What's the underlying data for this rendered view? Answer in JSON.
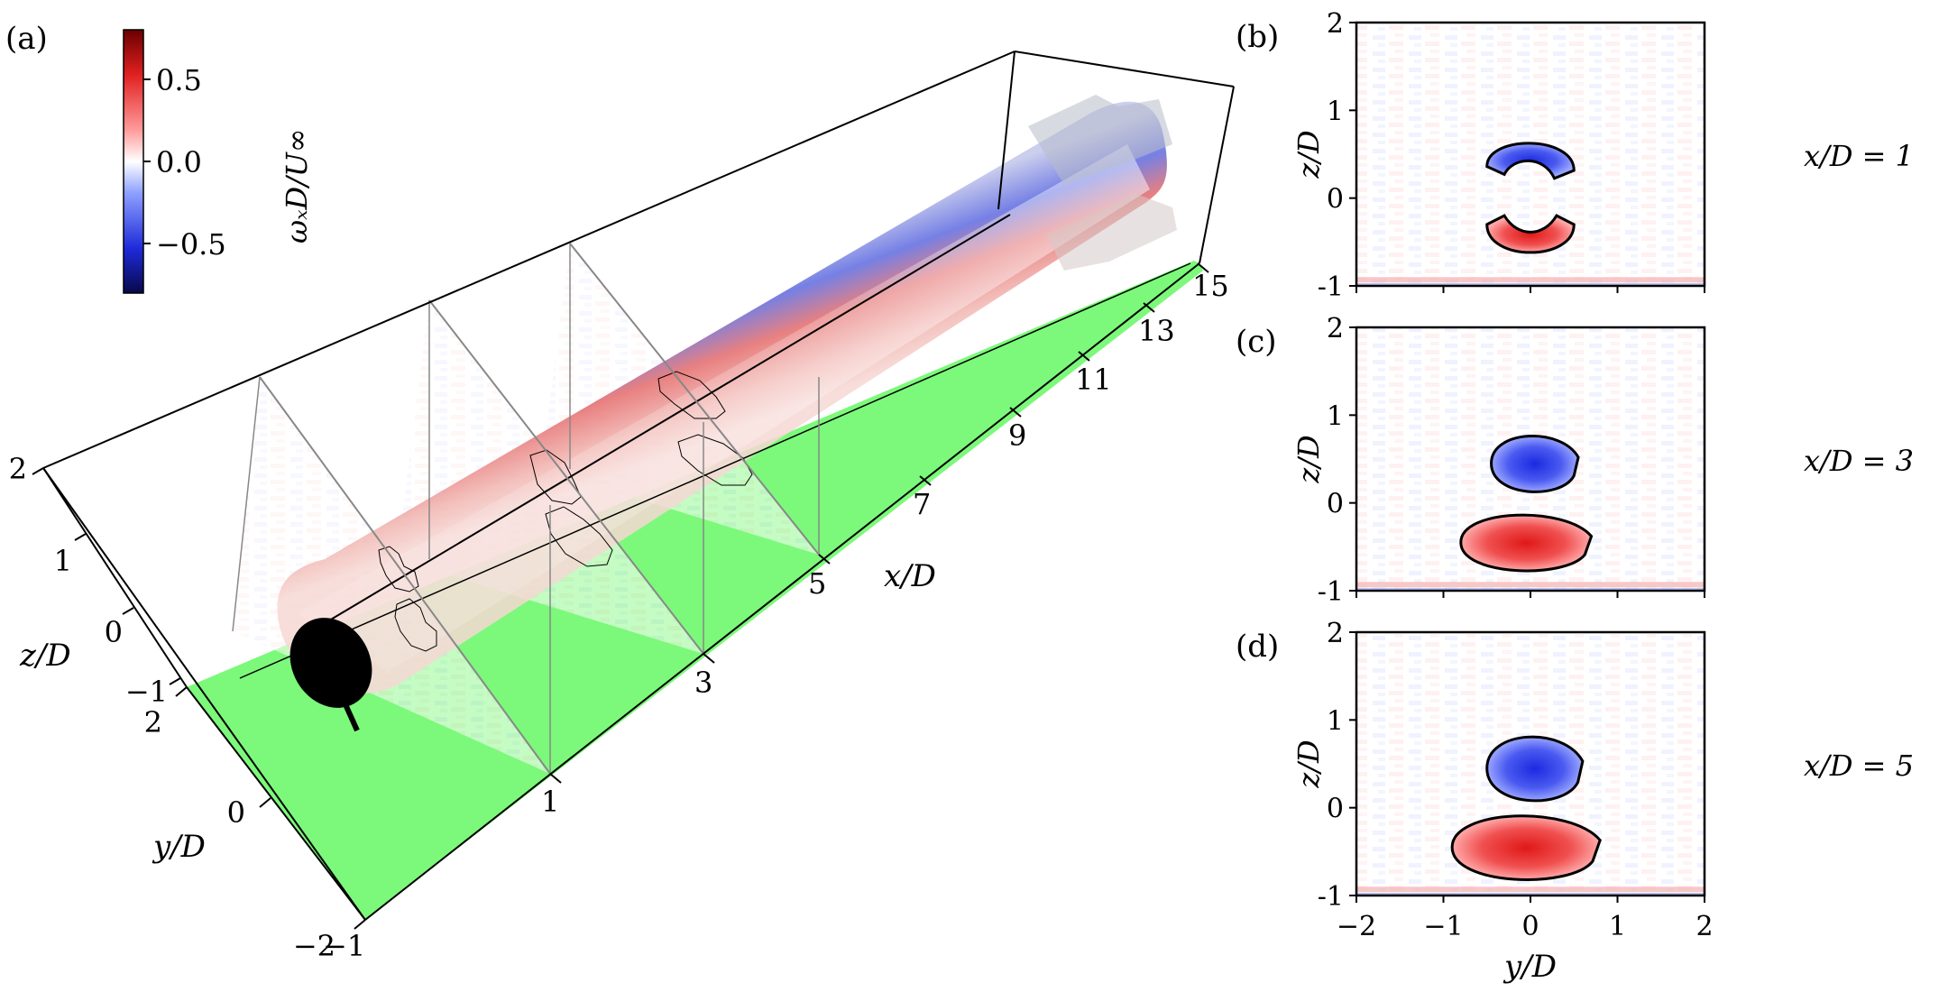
{
  "chart_data": [
    {
      "panel": "(a)",
      "type": "3d-volume",
      "xlabel": "x/D",
      "ylabel": "y/D",
      "zlabel": "z/D",
      "x_ticks": [
        "1",
        "3",
        "5",
        "7",
        "9",
        "11",
        "13",
        "15"
      ],
      "y_ticks": [
        "2",
        "0",
        "−2"
      ],
      "z_ticks": [
        "2",
        "1",
        "0",
        "−1"
      ],
      "corner_tick": "−1",
      "xlim": [
        -1,
        15
      ],
      "ylim": [
        -2,
        2
      ],
      "zlim": [
        -1,
        2
      ],
      "slice_positions_x": [
        1,
        3,
        5
      ],
      "colorbar": {
        "label": "ωₓD/U∞",
        "ticks": [
          "0.5",
          "0.0",
          "−0.5"
        ],
        "range": [
          -0.75,
          0.75
        ],
        "colormap": [
          "#08084a",
          "#1e2bd9",
          "#8ea0ff",
          "#ffffff",
          "#ff9a9a",
          "#e02020",
          "#6a0000"
        ]
      },
      "ground_color": "#7cf97a"
    },
    {
      "panel": "(b)",
      "type": "heatmap",
      "slice_label": "x/D = 1",
      "xlabel": "",
      "ylabel": "z/D",
      "xlim": [
        -2,
        2
      ],
      "ylim": [
        -1,
        2
      ],
      "yticks": [
        "2",
        "1",
        "0",
        "-1"
      ],
      "xticks": [],
      "regions": [
        {
          "sign": "negative",
          "center": [
            0.0,
            0.45
          ],
          "extent": [
            1.0,
            0.45
          ],
          "shape": "arc-up"
        },
        {
          "sign": "positive",
          "center": [
            0.0,
            -0.45
          ],
          "extent": [
            1.0,
            0.5
          ],
          "shape": "arc-down"
        }
      ]
    },
    {
      "panel": "(c)",
      "type": "heatmap",
      "slice_label": "x/D = 3",
      "xlabel": "",
      "ylabel": "z/D",
      "xlim": [
        -2,
        2
      ],
      "ylim": [
        -1,
        2
      ],
      "yticks": [
        "2",
        "1",
        "0",
        "-1"
      ],
      "xticks": [],
      "regions": [
        {
          "sign": "negative",
          "center": [
            0.05,
            0.45
          ],
          "extent": [
            1.0,
            0.7
          ]
        },
        {
          "sign": "positive",
          "center": [
            -0.05,
            -0.45
          ],
          "extent": [
            1.5,
            0.7
          ]
        }
      ]
    },
    {
      "panel": "(d)",
      "type": "heatmap",
      "slice_label": "x/D = 5",
      "xlabel": "y/D",
      "ylabel": "z/D",
      "xlim": [
        -2,
        2
      ],
      "ylim": [
        -1,
        2
      ],
      "yticks": [
        "2",
        "1",
        "0",
        "-1"
      ],
      "xticks": [
        "−2",
        "−1",
        "0",
        "1",
        "2"
      ],
      "regions": [
        {
          "sign": "negative",
          "center": [
            0.05,
            0.45
          ],
          "extent": [
            1.1,
            0.8
          ]
        },
        {
          "sign": "positive",
          "center": [
            -0.05,
            -0.45
          ],
          "extent": [
            1.7,
            0.8
          ]
        }
      ]
    }
  ]
}
